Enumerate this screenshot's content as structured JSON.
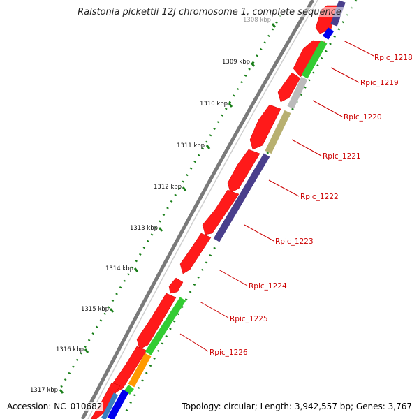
{
  "title": "Ralstonia pickettii 12J chromosome 1, complete sequence",
  "footer": {
    "accession": "Accession: NC_010682",
    "summary": "Topology: circular; Length: 3,942,557 bp; Genes: 3,767"
  },
  "colors": {
    "backbone": "#8a8a8a",
    "cds": "#ff0000",
    "tick": "#1a7f1a",
    "label": "#cc0000"
  },
  "scale_ticks": [
    "1308 kbp",
    "1309 kbp",
    "1310 kbp",
    "1311 kbp",
    "1312 kbp",
    "1313 kbp",
    "1314 kbp",
    "1315 kbp",
    "1316 kbp",
    "1317 kbp"
  ],
  "gene_labels": [
    "Rpic_1218",
    "Rpic_1219",
    "Rpic_1220",
    "Rpic_1221",
    "Rpic_1222",
    "Rpic_1223",
    "Rpic_1224",
    "Rpic_1225",
    "Rpic_1226"
  ],
  "cog_colors": [
    "#4a3f8c",
    "#0000ee",
    "#33cc33",
    "#bbbbbb",
    "#b8b070",
    "#4a3f8c",
    "#33cc33",
    "#ff9900",
    "#3a7fc0"
  ]
}
